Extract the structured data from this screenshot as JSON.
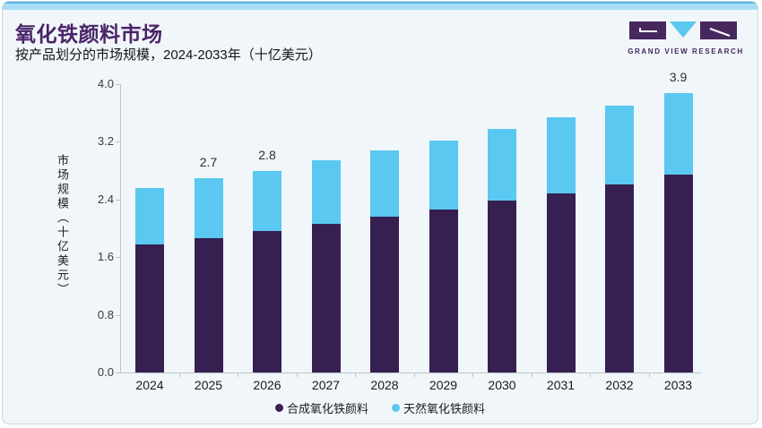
{
  "header": {
    "title": "氧化铁颜料市场",
    "subtitle": "按产品划分的市场规模，2024-2033年（十亿美元）"
  },
  "logo": {
    "text": "GRAND VIEW RESEARCH",
    "purple": "#46285f",
    "cyan": "#5ac8f0"
  },
  "colors": {
    "card_bg": "#f0f6f9",
    "band_light": "#a8dcf6",
    "band_dark": "#55b2e4",
    "title": "#4a2468",
    "axis": "#bcc5ca"
  },
  "chart_data": {
    "type": "bar",
    "stacked": true,
    "title": "氧化铁颜料市场",
    "subtitle": "按产品划分的市场规模，2024-2033年（十亿美元）",
    "ylabel": "市场规模（十亿美元）",
    "xlabel": "",
    "ylim": [
      0.0,
      4.0
    ],
    "yticks": [
      0.0,
      0.8,
      1.6,
      2.4,
      3.2,
      4.0
    ],
    "grid": false,
    "legend_position": "bottom",
    "categories": [
      "2024",
      "2025",
      "2026",
      "2027",
      "2028",
      "2029",
      "2030",
      "2031",
      "2032",
      "2033"
    ],
    "series": [
      {
        "key": "synthetic",
        "name": "合成氧化铁颜料",
        "color": "#361f51",
        "values": [
          1.78,
          1.86,
          1.96,
          2.06,
          2.16,
          2.26,
          2.38,
          2.48,
          2.61,
          2.74
        ]
      },
      {
        "key": "natural",
        "name": "天然氧化铁颜料",
        "color": "#5ac8f0",
        "values": [
          0.78,
          0.84,
          0.84,
          0.88,
          0.92,
          0.96,
          1.0,
          1.06,
          1.09,
          1.14
        ]
      }
    ],
    "totals": [
      2.56,
      2.7,
      2.8,
      2.94,
      3.08,
      3.22,
      3.38,
      3.54,
      3.7,
      3.88
    ],
    "bar_labels": [
      "",
      "2.7",
      "2.8",
      "",
      "",
      "",
      "",
      "",
      "",
      "3.9"
    ]
  }
}
